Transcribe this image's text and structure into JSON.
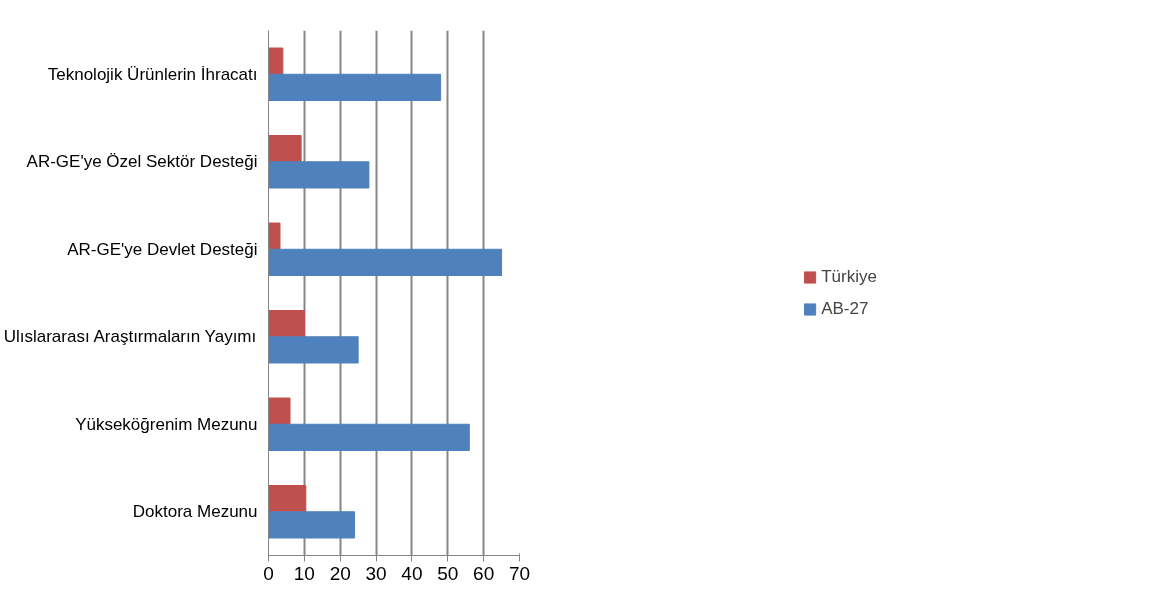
{
  "chart_data": {
    "type": "bar",
    "orientation": "horizontal",
    "categories": [
      "Teknolojik Ürünlerin İhracatı",
      "AR-GE'ye Özel Sektör Desteği",
      "AR-GE'ye Devlet Desteği",
      "Ulıslararası Araştırmaların Yayımı",
      "Yükseköğrenim Mezunu",
      "Doktora Mezunu"
    ],
    "series": [
      {
        "name": "Türkiye",
        "color": "#c0504d",
        "values": [
          4.0,
          9.1,
          3.2,
          10.0,
          6.0,
          10.4
        ]
      },
      {
        "name": "AB-27",
        "color": "#4f81bd",
        "values": [
          48,
          28,
          65,
          25,
          56,
          24
        ]
      }
    ],
    "xlim": [
      0,
      70
    ],
    "xticks": [
      0,
      10,
      20,
      30,
      40,
      50,
      60,
      70
    ],
    "grid": "x",
    "legend": "right"
  }
}
